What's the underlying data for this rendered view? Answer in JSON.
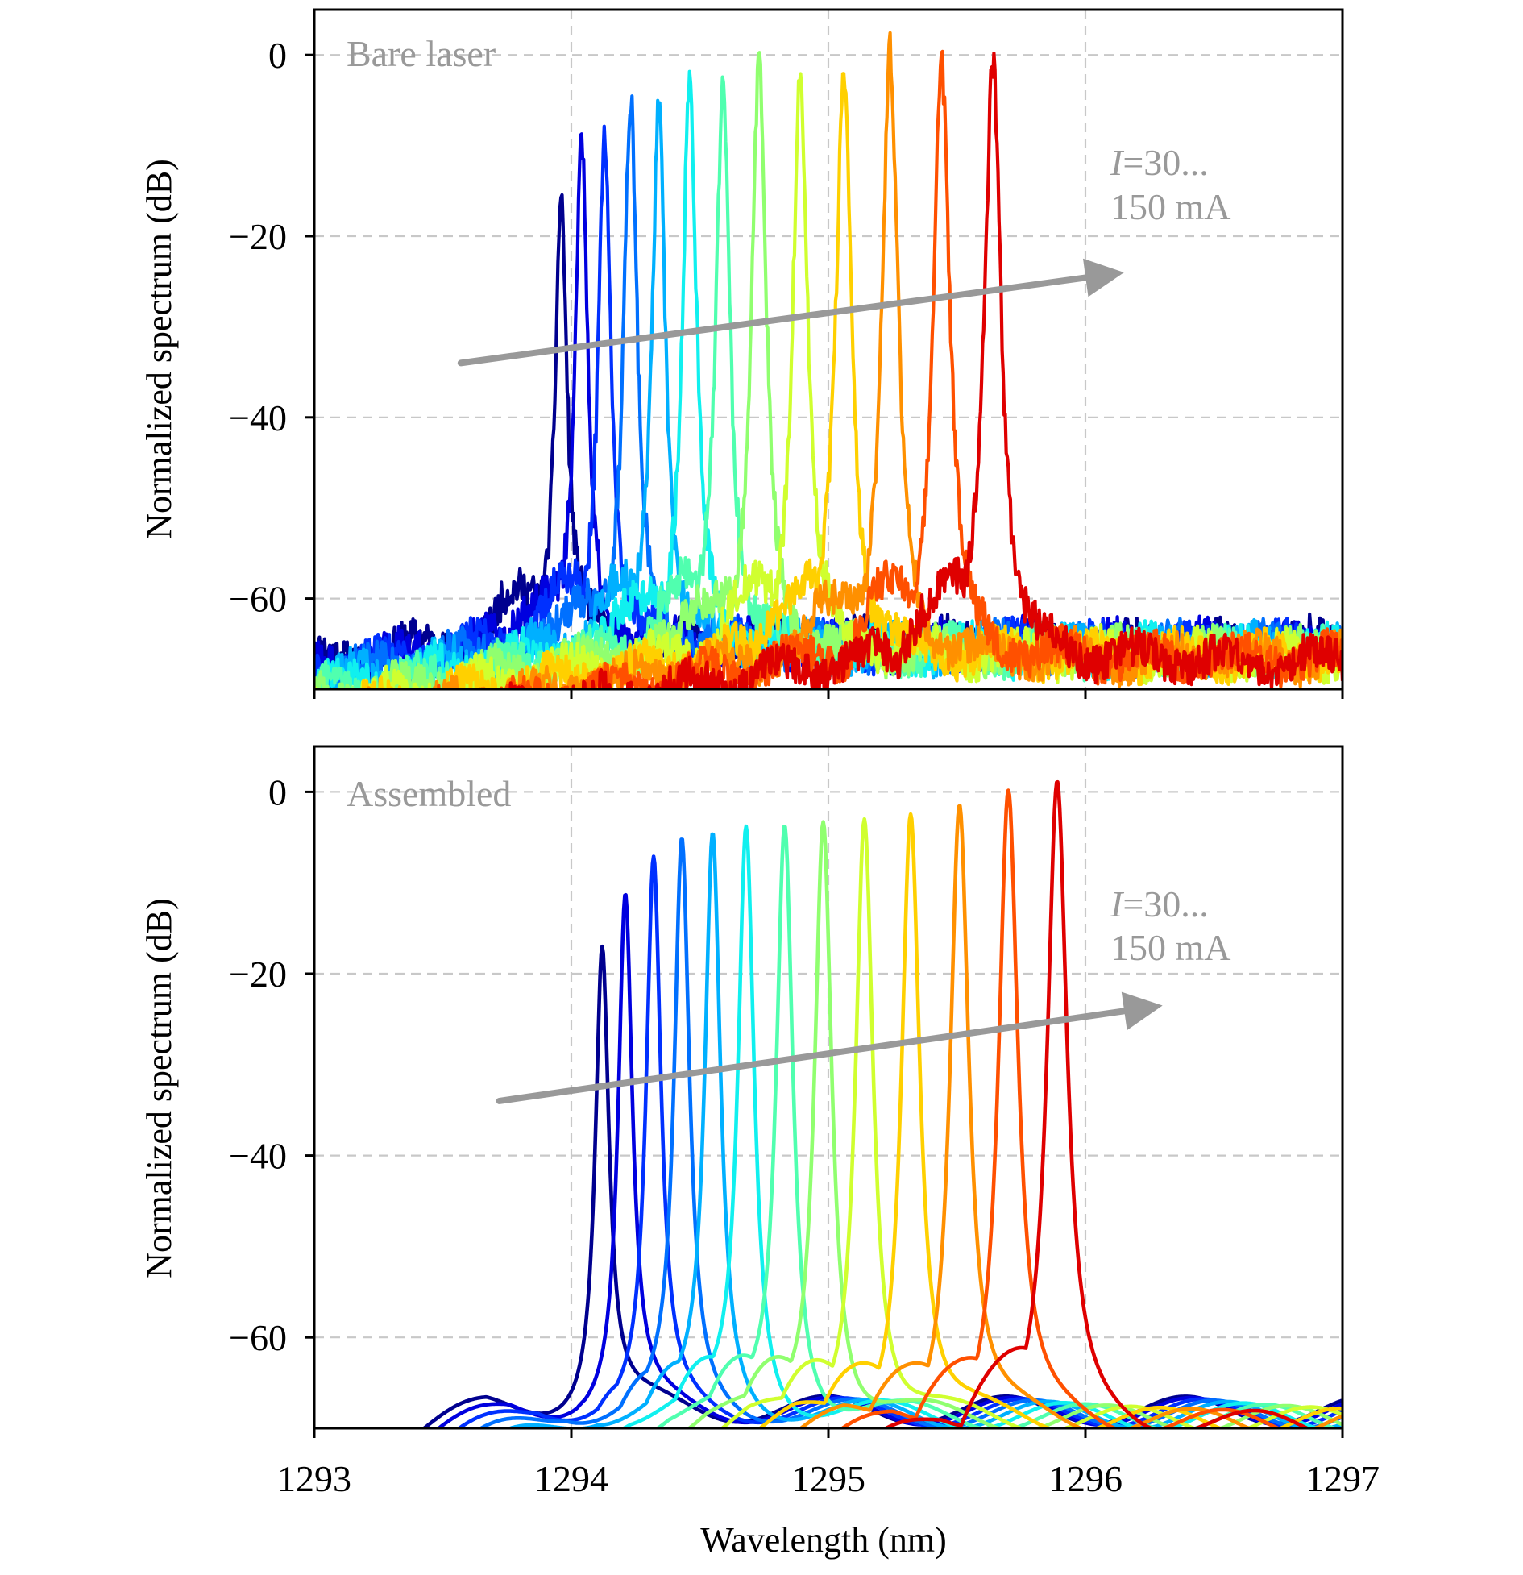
{
  "figure": {
    "xlabel": "Wavelength (nm)",
    "ylabel": "Normalized spectrum (dB)"
  },
  "chart_data": [
    {
      "type": "line",
      "panel_label": "Bare laser",
      "annotation": {
        "prefix": "I",
        "line1_rest": "=30...",
        "line2": "150 mA"
      },
      "xlabel": "",
      "ylabel": "Normalized spectrum (dB)",
      "xlim": [
        1293,
        1297
      ],
      "ylim": [
        -70,
        5
      ],
      "xticks": [
        1293,
        1294,
        1295,
        1296,
        1297
      ],
      "yticks": [
        0,
        -20,
        -40,
        -60
      ],
      "ytick_labels": [
        "0",
        "−20",
        "−40",
        "−60"
      ],
      "grid": true,
      "arrow": {
        "from": [
          1293.57,
          -34
        ],
        "to": [
          1296.15,
          -24
        ]
      },
      "series_colors": [
        "#00008f",
        "#0000df",
        "#0030ff",
        "#0070ff",
        "#00b0ff",
        "#10f0ef",
        "#50ffaf",
        "#90ff6f",
        "#d0ff2f",
        "#ffd000",
        "#ff9000",
        "#ff5000",
        "#df0000"
      ],
      "peaks": [
        {
          "x": 1293.96,
          "y": -15
        },
        {
          "x": 1294.04,
          "y": -10
        },
        {
          "x": 1294.13,
          "y": -7
        },
        {
          "x": 1294.23,
          "y": -5.5
        },
        {
          "x": 1294.34,
          "y": -4.5
        },
        {
          "x": 1294.46,
          "y": -3.5
        },
        {
          "x": 1294.59,
          "y": -2.5
        },
        {
          "x": 1294.73,
          "y": -2
        },
        {
          "x": 1294.89,
          "y": -1.5
        },
        {
          "x": 1295.06,
          "y": -1
        },
        {
          "x": 1295.24,
          "y": -0.7
        },
        {
          "x": 1295.44,
          "y": -0.3
        },
        {
          "x": 1295.64,
          "y": 0
        }
      ],
      "noise_floor": -64
    },
    {
      "type": "line",
      "panel_label": "Assembled",
      "annotation": {
        "prefix": "I",
        "line1_rest": "=30...",
        "line2": "150 mA"
      },
      "xlabel": "Wavelength (nm)",
      "ylabel": "Normalized spectrum (dB)",
      "xlim": [
        1293,
        1297
      ],
      "ylim": [
        -70,
        5
      ],
      "xticks": [
        1293,
        1294,
        1295,
        1296,
        1297
      ],
      "xtick_labels": [
        "1293",
        "1294",
        "1295",
        "1296",
        "1297"
      ],
      "yticks": [
        0,
        -20,
        -40,
        -60
      ],
      "ytick_labels": [
        "0",
        "−20",
        "−40",
        "−60"
      ],
      "grid": true,
      "arrow": {
        "from": [
          1293.72,
          -34
        ],
        "to": [
          1296.3,
          -23.5
        ]
      },
      "series_colors": [
        "#00008f",
        "#0000df",
        "#0030ff",
        "#0070ff",
        "#00b0ff",
        "#10f0ef",
        "#50ffaf",
        "#90ff6f",
        "#d0ff2f",
        "#ffd000",
        "#ff9000",
        "#ff5000",
        "#df0000"
      ],
      "peaks": [
        {
          "x": 1294.12,
          "y": -17
        },
        {
          "x": 1294.21,
          "y": -12
        },
        {
          "x": 1294.32,
          "y": -8.5
        },
        {
          "x": 1294.43,
          "y": -6.5
        },
        {
          "x": 1294.55,
          "y": -5.5
        },
        {
          "x": 1294.68,
          "y": -4
        },
        {
          "x": 1294.83,
          "y": -3
        },
        {
          "x": 1294.98,
          "y": -2
        },
        {
          "x": 1295.14,
          "y": -1.5
        },
        {
          "x": 1295.32,
          "y": -1.3
        },
        {
          "x": 1295.51,
          "y": -1
        },
        {
          "x": 1295.7,
          "y": -0.3
        },
        {
          "x": 1295.89,
          "y": 0
        }
      ],
      "noise_floor": -66
    }
  ]
}
